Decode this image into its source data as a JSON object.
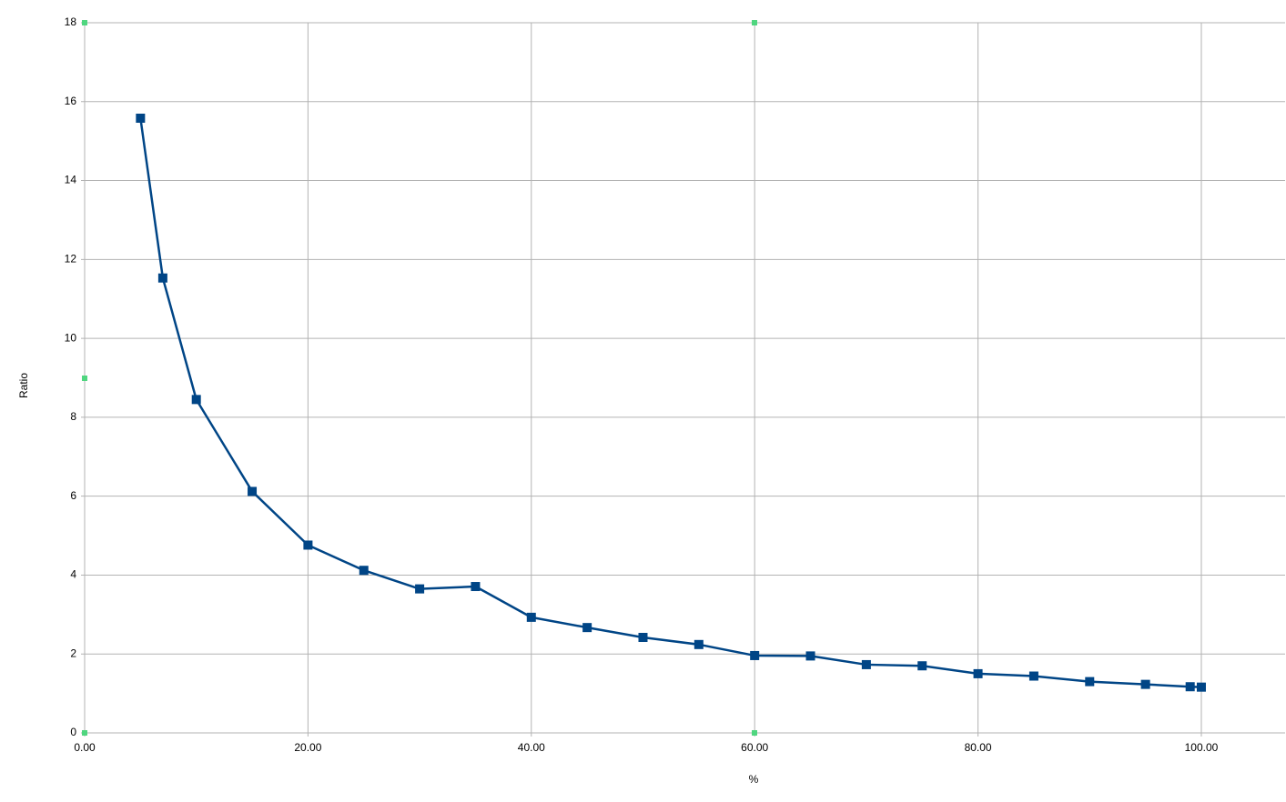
{
  "chart_data": {
    "type": "line",
    "x_label": "%",
    "y_label": "Ratio",
    "xlim": [
      0,
      107.5
    ],
    "ylim": [
      0,
      18
    ],
    "xticks": [
      {
        "value": 0,
        "label": "0.00"
      },
      {
        "value": 20,
        "label": "20.00"
      },
      {
        "value": 40,
        "label": "40.00"
      },
      {
        "value": 60,
        "label": "60.00"
      },
      {
        "value": 80,
        "label": "80.00"
      },
      {
        "value": 100,
        "label": "100.00"
      }
    ],
    "yticks": [
      0,
      2,
      4,
      6,
      8,
      10,
      12,
      14,
      16,
      18
    ],
    "grid": true,
    "x": [
      5,
      7,
      10,
      15,
      20,
      25,
      30,
      35,
      40,
      45,
      50,
      55,
      60,
      65,
      70,
      75,
      80,
      85,
      90,
      95,
      99,
      100
    ],
    "series": [
      {
        "color": "#004586",
        "values": [
          15.58,
          11.53,
          8.45,
          6.12,
          4.76,
          4.12,
          3.65,
          3.71,
          2.93,
          2.67,
          2.42,
          2.24,
          1.96,
          1.95,
          1.73,
          1.7,
          1.5,
          1.44,
          1.3,
          1.23,
          1.17,
          1.16
        ]
      }
    ]
  }
}
